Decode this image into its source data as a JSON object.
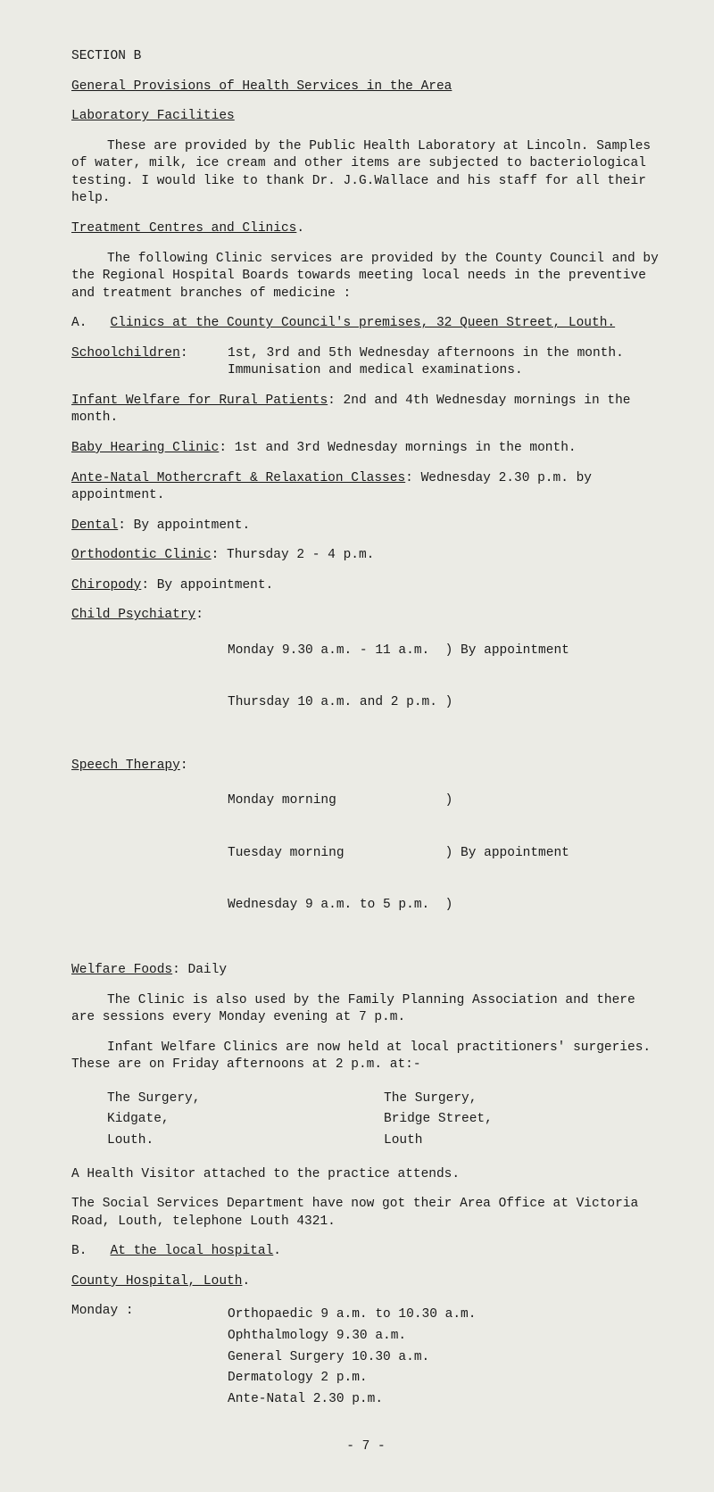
{
  "section_title": "SECTION B",
  "main_title": "General Provisions of Health Services in the Area",
  "lab_heading": "Laboratory Facilities",
  "lab_para": "These are provided by the Public Health Laboratory at Lincoln. Samples of water, milk, ice cream and other items are subjected to bacteriological testing.  I would like to thank Dr. J.G.Wallace and his staff for all their help.",
  "treat_heading": "Treatment Centres and Clinics",
  "treat_intro_a": "The following Clinic services are provided by the County Council and by the Regional Hospital Boards towards meeting local needs in the preventive and treatment branches of medicine :",
  "a_label": "A.",
  "a_heading": "Clinics at the County Council's premises, 32 Queen Street, Louth.",
  "school_lbl": "Schoolchildren",
  "school_val": "1st, 3rd and 5th Wednesday afternoons in the month.   Immunisation and medical examinations.",
  "infant_lbl": "Infant Welfare for Rural Patients",
  "infant_val": ":  2nd and 4th Wednesday mornings in the month.",
  "baby_lbl": "Baby Hearing Clinic",
  "baby_val": ":  1st and 3rd Wednesday mornings in the month.",
  "ante_lbl": "Ante-Natal Mothercraft & Relaxation Classes",
  "ante_val": ": Wednesday 2.30 p.m. by appointment.",
  "dental_lbl": "Dental",
  "dental_val": ":   By appointment.",
  "ortho_lbl": "Orthodontic Clinic",
  "ortho_val": ":   Thursday 2 - 4 p.m.",
  "chiro_lbl": "Chiropody",
  "chiro_val": ":   By appointment.",
  "child_lbl": "Child Psychiatry",
  "child_val1": "Monday 9.30 a.m. - 11 a.m.  )",
  "child_val2": "Thursday 10 a.m. and 2 p.m. )",
  "child_note": " By appointment",
  "speech_lbl": "Speech Therapy",
  "speech_val1": "Monday morning              )",
  "speech_val2": "Tuesday morning             ) By appointment",
  "speech_val3": "Wednesday 9 a.m. to 5 p.m.  )",
  "welfare_lbl": "Welfare Foods",
  "welfare_val": ":        Daily",
  "clinic_para": "The Clinic is also used by the Family Planning Association and there are sessions every Monday evening at 7 p.m.",
  "infant_para": "Infant Welfare Clinics are now held at local practitioners' surgeries.    These are on Friday afternoons at 2 p.m. at:-",
  "surgery1_a": "The Surgery,",
  "surgery1_b": "Kidgate,",
  "surgery1_c": "Louth.",
  "surgery2_a": "The Surgery,",
  "surgery2_b": "Bridge Street,",
  "surgery2_c": "Louth",
  "health_visitor": "A Health Visitor attached to the practice attends.",
  "social_services": "The Social Services Department have now got their Area Office at Victoria Road, Louth, telephone Louth 4321.",
  "b_label": "B.",
  "b_heading": "At the local hospital",
  "county_hosp": "County Hospital, Louth",
  "monday_lbl": "Monday :",
  "monday_l1": "Orthopaedic 9 a.m. to 10.30 a.m.",
  "monday_l2": "Ophthalmology 9.30 a.m.",
  "monday_l3": "General Surgery 10.30 a.m.",
  "monday_l4": "Dermatology 2 p.m.",
  "monday_l5": "Ante-Natal  2.30 p.m.",
  "page_num": "- 7 -",
  "colon": ":"
}
